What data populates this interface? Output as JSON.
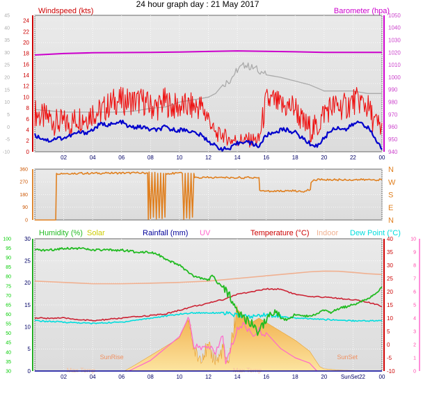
{
  "page_title": "24 hour graph day : 21 May 2017",
  "colors": {
    "wind_label": "#cc0000",
    "wind_avg": "#0000cc",
    "gust": "#ee1111",
    "baro": "#cc00cc",
    "baro_axis": "#cc44cc",
    "wind_axis_inner": "#aaaaaa",
    "dir": "#e08020",
    "humidity": "#22bb22",
    "humidity_axis": "#00cc00",
    "solar": "#cccc00",
    "solar_fill": "#f6c060",
    "rain": "#000099",
    "uv": "#ff66cc",
    "temperature": "#cc0000",
    "indoor": "#f0b090",
    "dewpoint": "#00dddd",
    "plot_bg": "#e0e0e0"
  },
  "chart_data": [
    {
      "type": "line",
      "title": "24 hour graph day : 21 May 2017",
      "x_tick_labels": [
        "02",
        "04",
        "06",
        "08",
        "10",
        "12",
        "14",
        "16",
        "18",
        "20",
        "22",
        "00"
      ],
      "legend": {
        "left": "Windspeed (kts)",
        "right": "Barometer (hpa)"
      },
      "y_left": {
        "ticks": [
          "24",
          "22",
          "20",
          "18",
          "16",
          "14",
          "12",
          "10",
          "8",
          "6",
          "4",
          "2",
          "0"
        ],
        "ylim": [
          0,
          25
        ]
      },
      "y_left_outer": {
        "ticks": [
          "45",
          "40",
          "35",
          "30",
          "25",
          "20",
          "15",
          "10",
          "5",
          "0",
          "-5",
          "-10"
        ],
        "ylim": [
          -10,
          45
        ]
      },
      "y_right": {
        "ticks": [
          "1050",
          "1040",
          "1030",
          "1020",
          "1010",
          "1000",
          "990",
          "980",
          "970",
          "960",
          "950",
          "940"
        ],
        "ylim": [
          940,
          1050
        ]
      },
      "series": [
        {
          "name": "Barometer (hpa)",
          "axis": "right",
          "x": [
            0,
            2,
            4,
            6,
            8,
            10,
            12,
            14,
            16,
            18,
            20,
            22,
            24
          ],
          "y": [
            1018.0,
            1019.2,
            1019.8,
            1020.0,
            1020.1,
            1020.4,
            1020.9,
            1021.3,
            1021.0,
            1020.6,
            1020.1,
            1020.1,
            1020.1
          ]
        },
        {
          "axis": "left_outer",
          "x": [
            0,
            2,
            4,
            6,
            7,
            8,
            9,
            10,
            11,
            12,
            12.5,
            13,
            13.5,
            14,
            14.5,
            15,
            15.5,
            16,
            17,
            18,
            19,
            20,
            21,
            22,
            23,
            24
          ],
          "y": [
            7,
            6,
            6,
            6,
            6.5,
            7.5,
            8,
            10,
            11,
            12,
            13.5,
            17,
            19,
            23,
            25,
            24,
            23,
            21,
            20,
            18.5,
            17,
            14.5,
            14.5,
            14.5,
            13.5,
            13.5
          ]
        },
        {
          "axis": "left",
          "x": [
            0,
            0.5,
            1,
            1.5,
            2,
            2.5,
            3,
            3.5,
            4,
            4.5,
            5,
            5.5,
            6,
            6.5,
            7,
            7.5,
            8,
            8.5,
            9,
            9.5,
            10,
            10.5,
            11,
            11.5,
            12,
            12.5,
            13,
            13.5,
            14,
            14.5,
            15,
            15.5,
            16,
            16.5,
            17,
            17.5,
            18,
            18.5,
            19,
            19.5,
            20,
            20.5,
            21,
            21.5,
            22,
            22.5,
            23,
            23.5,
            24
          ],
          "y": [
            7,
            6,
            6,
            5,
            5,
            5,
            6,
            6,
            7,
            7,
            8,
            9,
            9,
            9,
            9,
            9,
            8,
            8,
            9,
            8,
            8,
            8,
            8,
            8,
            6,
            3,
            3,
            2,
            2,
            2,
            2,
            2,
            9,
            9,
            8,
            8,
            8,
            5,
            4,
            4,
            7,
            8,
            8,
            8,
            9,
            9,
            8,
            5,
            4
          ]
        },
        {
          "axis": "left",
          "x": [
            0,
            0.5,
            1,
            1.5,
            2,
            2.5,
            3,
            3.5,
            4,
            4.5,
            5,
            5.5,
            6,
            6.5,
            7,
            7.5,
            8,
            8.5,
            9,
            9.5,
            10,
            10.5,
            11,
            11.5,
            12,
            12.5,
            13,
            13.5,
            14,
            14.5,
            15,
            15.5,
            16,
            16.5,
            17,
            17.5,
            18,
            18.5,
            19,
            19.5,
            20,
            20.5,
            21,
            21.5,
            22,
            22.5,
            23,
            23.5,
            24
          ],
          "y": [
            3,
            2.5,
            2,
            2.5,
            2.5,
            3,
            3.5,
            3.5,
            4,
            5,
            5,
            5,
            5.5,
            4.5,
            4.5,
            4.5,
            4,
            4,
            4.5,
            4,
            4,
            4,
            3.5,
            3,
            2,
            1,
            0.5,
            0.5,
            1.5,
            2,
            1.5,
            1,
            3,
            3.5,
            4,
            4,
            3.5,
            2.5,
            1.5,
            1,
            2.5,
            4,
            4.5,
            4,
            5,
            5.5,
            4.5,
            2.5,
            0.5
          ]
        }
      ]
    },
    {
      "type": "line",
      "title": "",
      "x_tick_labels": [],
      "y_left": {
        "ticks": [
          "360",
          "270",
          "180",
          "90",
          "0"
        ],
        "ylim": [
          0,
          360
        ]
      },
      "y_right_labels": [
        "N",
        "W",
        "S",
        "E",
        "N"
      ],
      "series": [
        {
          "name": "wind direction",
          "x": [
            0,
            1.45,
            1.5,
            3,
            5,
            7,
            7.8,
            7.85,
            7.9,
            8,
            8.1,
            8.2,
            8.3,
            8.4,
            8.5,
            8.6,
            8.7,
            8.8,
            8.9,
            9.0,
            9.05,
            10.2,
            10.3,
            10.4,
            10.5,
            10.6,
            10.7,
            10.8,
            10.9,
            11.0,
            11.05,
            13,
            15.5,
            15.55,
            16.5,
            17.5,
            18.5,
            19.05,
            19.1,
            19.3,
            20,
            24
          ],
          "y": [
            0,
            0,
            330,
            330,
            332,
            333,
            333,
            5,
            340,
            10,
            335,
            20,
            338,
            8,
            330,
            15,
            333,
            10,
            330,
            20,
            330,
            330,
            5,
            330,
            15,
            332,
            10,
            330,
            20,
            330,
            300,
            300,
            300,
            210,
            200,
            210,
            200,
            215,
            265,
            285,
            285,
            285
          ]
        }
      ]
    },
    {
      "type": "area",
      "title": "",
      "x_tick_labels": [
        "02",
        "04",
        "06",
        "08",
        "10",
        "12",
        "14",
        "16",
        "18",
        "20",
        "SunSet22",
        "00"
      ],
      "legend": [
        "Humidity (%)",
        "Solar",
        "Rainfall (mm)",
        "UV",
        "Temperature (°C)",
        "Indoor",
        "Dew Point (°C)"
      ],
      "annotations": [
        "SunRise",
        "SunSet",
        "Max Temp",
        "Max Temp"
      ],
      "y_left_outer": {
        "ticks": [
          "100",
          "95",
          "90",
          "85",
          "80",
          "75",
          "70",
          "65",
          "60",
          "55",
          "50",
          "45",
          "40",
          "35",
          "30"
        ],
        "ylim": [
          30,
          100
        ]
      },
      "y_left": {
        "ticks": [
          "30",
          "25",
          "20",
          "15",
          "10",
          "5",
          "0"
        ],
        "ylim": [
          0,
          30
        ]
      },
      "y_right": {
        "ticks": [
          "40",
          "35",
          "30",
          "25",
          "20",
          "15",
          "10",
          "5",
          "0",
          "-5",
          "-10"
        ],
        "ylim": [
          -10,
          40
        ]
      },
      "y_right_outer": {
        "ticks": [
          "10",
          "9",
          "8",
          "7",
          "6",
          "5",
          "4",
          "3",
          "2",
          "1",
          "0"
        ],
        "ylim": [
          0,
          10
        ]
      },
      "series": [
        {
          "name": "Humidity (%)",
          "axis": "left_outer",
          "x": [
            0,
            1,
            2,
            3,
            4,
            5,
            6,
            7,
            8,
            8.5,
            9,
            10,
            10.5,
            11,
            11.5,
            12,
            12.3,
            12.6,
            13,
            13.5,
            14,
            14.5,
            15,
            15.5,
            16,
            16.5,
            17,
            17.5,
            18,
            19,
            20,
            20.5,
            21,
            22,
            23,
            24
          ],
          "y": [
            94,
            94,
            95,
            95,
            94,
            94,
            94,
            93,
            93,
            92,
            89,
            86,
            83,
            80,
            79,
            78,
            81,
            77,
            74,
            70,
            62,
            58,
            55,
            50,
            58,
            61,
            58,
            57,
            60,
            59,
            62,
            61,
            63,
            65,
            68,
            74
          ]
        },
        {
          "name": "Temperature (°C)",
          "axis": "right",
          "x": [
            0,
            2,
            4,
            6,
            8,
            9,
            10,
            11,
            12,
            12.5,
            13,
            14,
            15,
            16,
            17,
            18,
            19,
            20,
            21,
            22,
            23,
            24
          ],
          "y": [
            10,
            10,
            9,
            10,
            11,
            11.5,
            13,
            14.5,
            15.5,
            16.5,
            17,
            19,
            20,
            21,
            21,
            19,
            18,
            18,
            17.5,
            17,
            16,
            14.5
          ]
        },
        {
          "name": "Dew Point (°C)",
          "axis": "right",
          "x": [
            0,
            2,
            4,
            6,
            8,
            10,
            11,
            12,
            13,
            14,
            15,
            16,
            17,
            18,
            20,
            22,
            24
          ],
          "y": [
            9,
            8.5,
            8,
            8.5,
            10,
            11.5,
            12,
            12,
            12,
            11,
            10.5,
            11.5,
            10.5,
            10,
            9.5,
            9,
            9
          ]
        },
        {
          "name": "Indoor",
          "axis": "right",
          "x": [
            0,
            2,
            4,
            6,
            8,
            10,
            12,
            14,
            16,
            18,
            19,
            20,
            21,
            22,
            23,
            24
          ],
          "y": [
            24,
            23.5,
            23,
            23,
            23.2,
            23.5,
            24,
            25,
            26,
            27,
            27.5,
            27.8,
            27.7,
            27.3,
            26.8,
            26.5
          ]
        },
        {
          "name": "Solar",
          "axis": "left",
          "x": [
            6.2,
            7,
            8,
            9,
            10,
            10.6,
            11,
            11.3,
            11.6,
            12,
            12.4,
            12.7,
            13,
            13.3,
            13.6,
            14,
            14.6,
            15,
            15.5,
            16,
            17,
            18,
            19,
            19.5,
            19.7,
            20,
            21,
            22,
            22.2
          ],
          "y": [
            0,
            1.5,
            3.5,
            5.5,
            7.5,
            12,
            5,
            3,
            4,
            5,
            3,
            2.5,
            5.5,
            0.5,
            7,
            14,
            12,
            11,
            12,
            11,
            9,
            7,
            4.5,
            2,
            1,
            0.5,
            0.2,
            0.1,
            0
          ]
        },
        {
          "name": "UV",
          "axis": "right_outer",
          "x": [
            6.5,
            8,
            9,
            10,
            10.6,
            11,
            11.5,
            12,
            12.5,
            13,
            13.2,
            13.5,
            14,
            14.5,
            15,
            15.5,
            16,
            17,
            18,
            19,
            19.5
          ],
          "y": [
            0,
            0.8,
            1.7,
            2.6,
            4.0,
            2.0,
            1.6,
            2.0,
            1.2,
            2.8,
            0.5,
            1.5,
            3.2,
            3.5,
            2.8,
            3.0,
            2.9,
            1.7,
            1.0,
            0.6,
            0
          ]
        },
        {
          "name": "Rainfall (mm)",
          "axis": "left",
          "x": [
            0,
            24
          ],
          "y": [
            0,
            0
          ]
        }
      ]
    }
  ]
}
